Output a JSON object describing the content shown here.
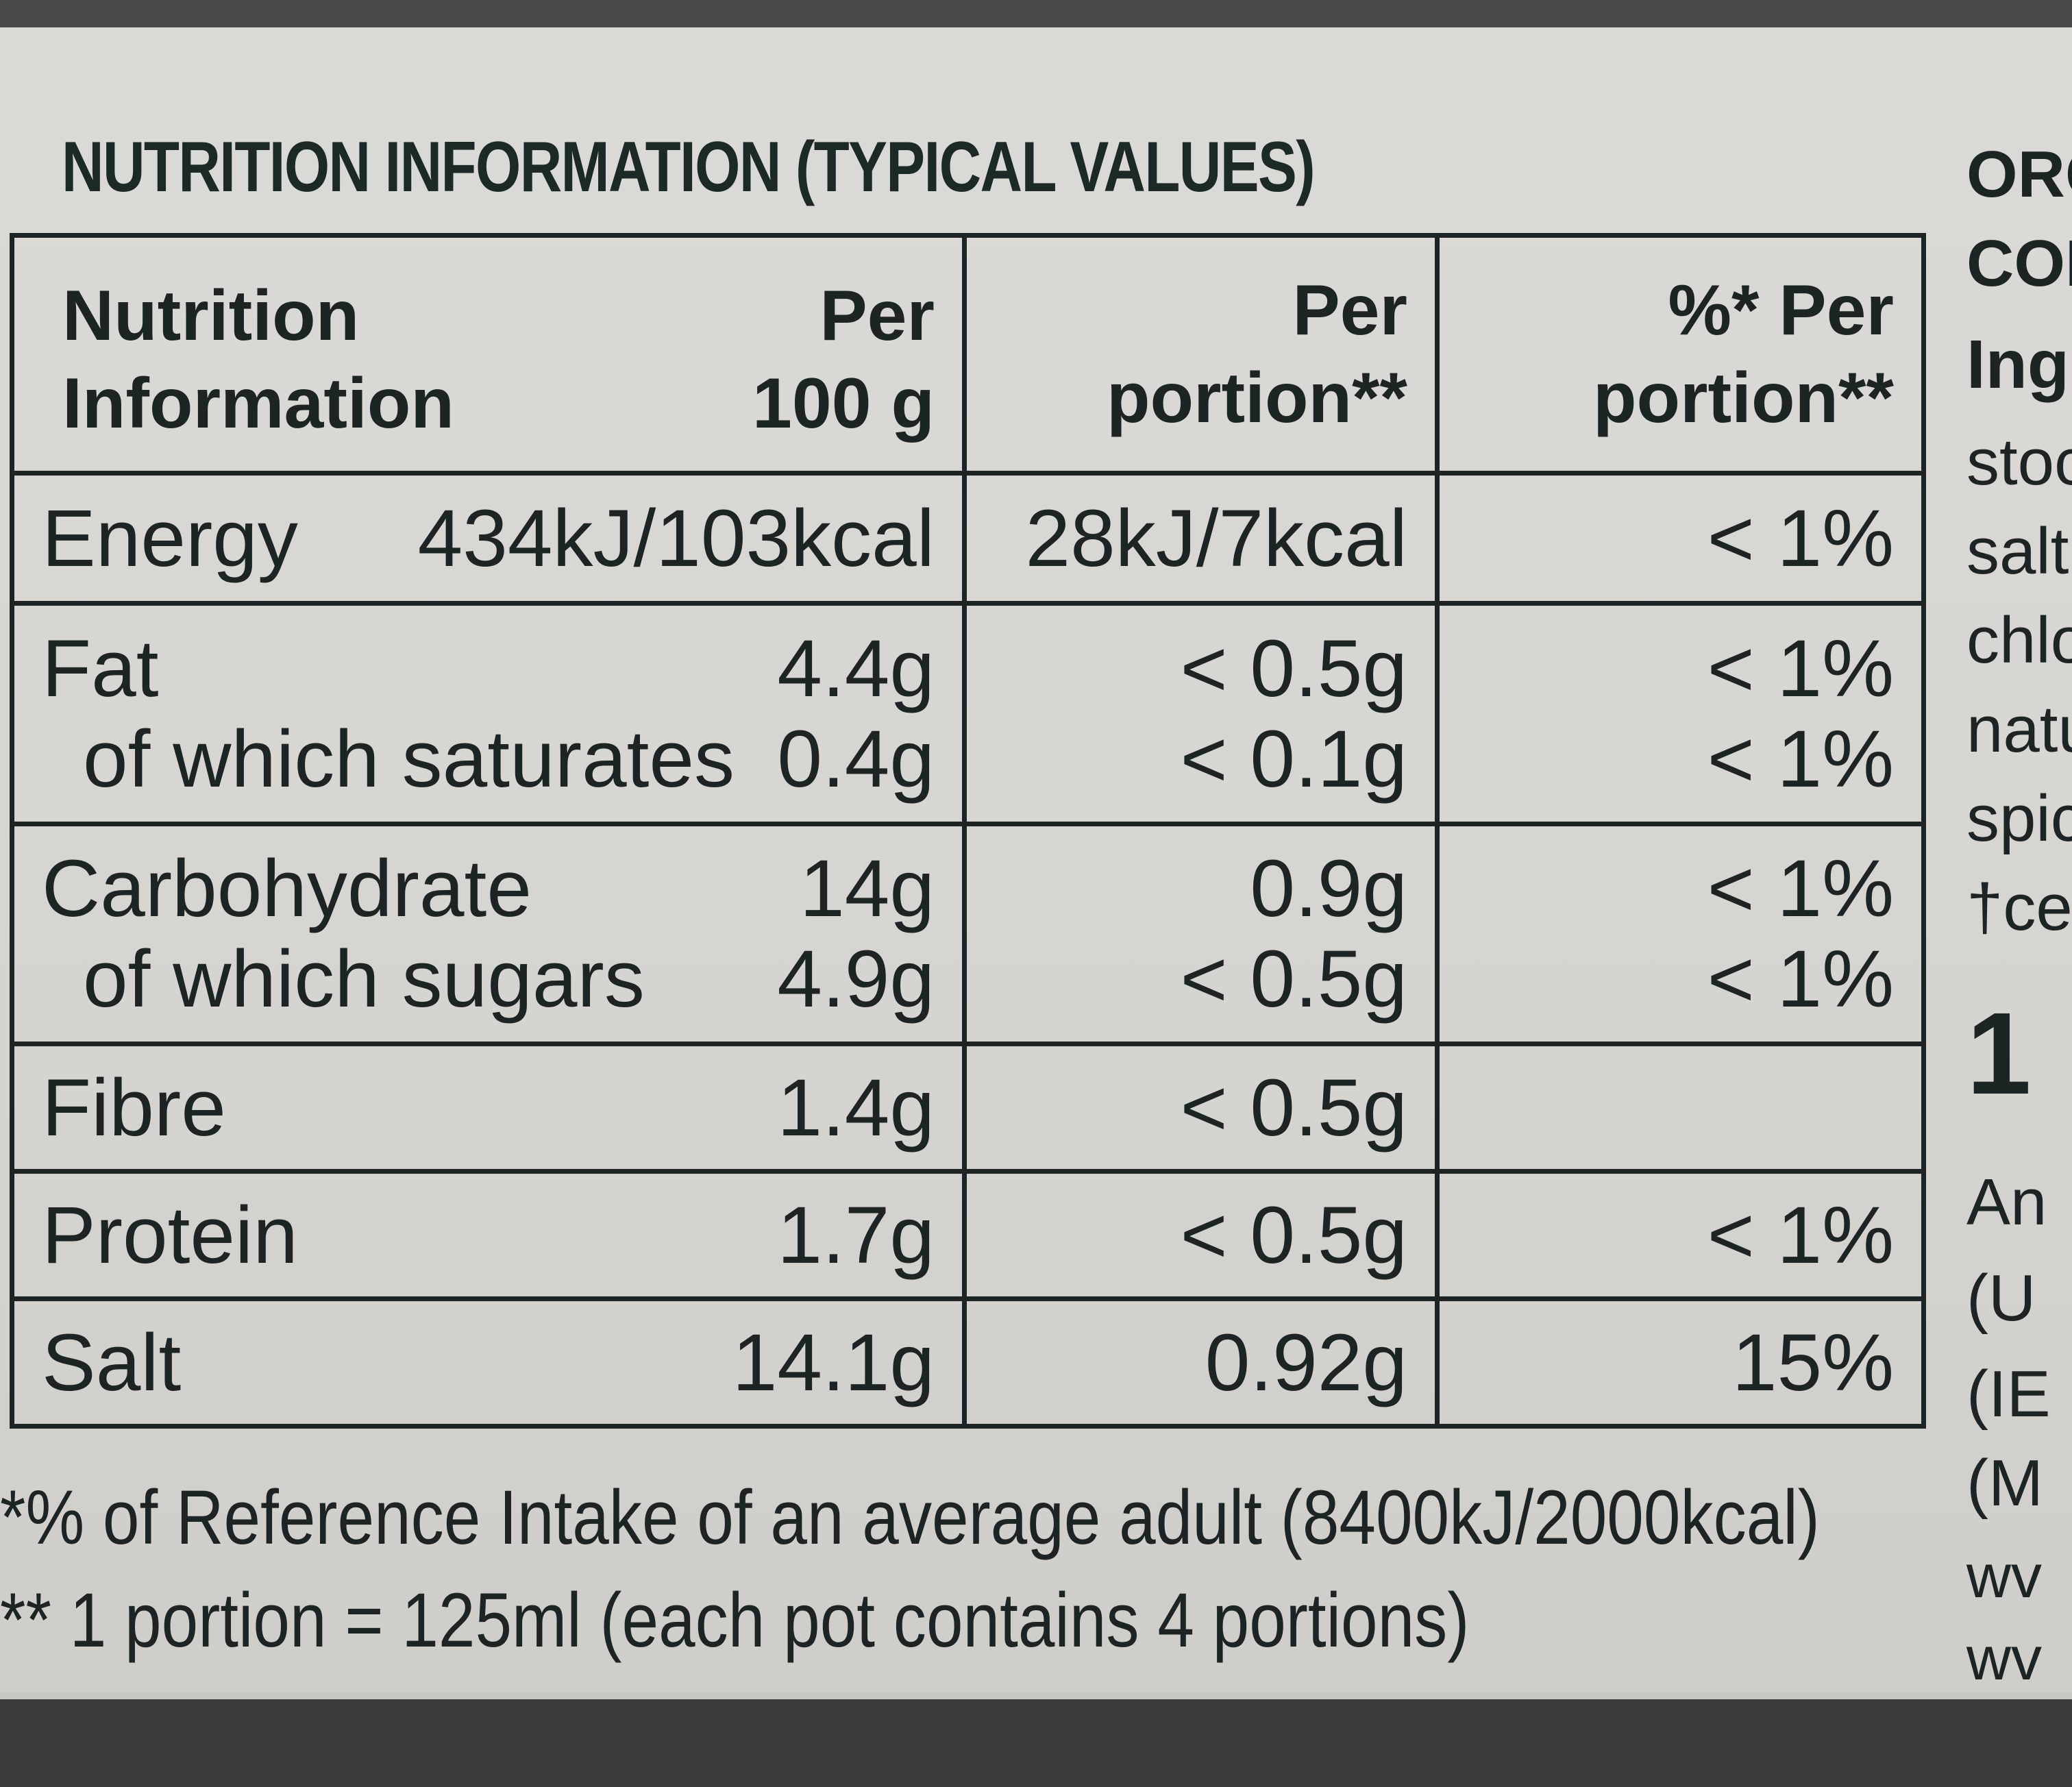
{
  "title": "NUTRITION INFORMATION (TYPICAL VALUES)",
  "headers": {
    "col1": [
      "Nutrition",
      "Information"
    ],
    "col2": [
      "Per",
      "100 g"
    ],
    "col3": [
      "Per",
      "portion**"
    ],
    "col4": [
      "%* Per",
      "portion**"
    ]
  },
  "rows": {
    "energy": {
      "label": "Energy",
      "per100": "434kJ/103kcal",
      "portion": "28kJ/7kcal",
      "ri": "< 1%"
    },
    "fat": {
      "label": "Fat",
      "per100": "4.4g",
      "portion": "< 0.5g",
      "ri": "< 1%"
    },
    "saturates": {
      "label": "of which saturates",
      "per100": "0.4g",
      "portion": "< 0.1g",
      "ri": "< 1%"
    },
    "carbohydrate": {
      "label": "Carbohydrate",
      "per100": "14g",
      "portion": "0.9g",
      "ri": "< 1%"
    },
    "sugars": {
      "label": "of which sugars",
      "per100": "4.9g",
      "portion": "< 0.5g",
      "ri": "< 1%"
    },
    "fibre": {
      "label": "Fibre",
      "per100": "1.4g",
      "portion": "< 0.5g",
      "ri": ""
    },
    "protein": {
      "label": "Protein",
      "per100": "1.7g",
      "portion": "< 0.5g",
      "ri": "< 1%"
    },
    "salt": {
      "label": "Salt",
      "per100": "14.1g",
      "portion": "0.92g",
      "ri": "15%"
    }
  },
  "footnotes": {
    "ri": "*% of Reference Intake of an average adult (8400kJ/2000kcal)",
    "portion": "** 1 portion = 125ml (each pot contains 4 portions)"
  },
  "side_text": {
    "l1": "ORG",
    "l2": "CON",
    "l3": "Ing",
    "l4": "stoc",
    "l5": "salt,",
    "l6": "chlo",
    "l7": "natu",
    "l8": "spic",
    "l9": "†cer",
    "l10": "1",
    "l11": "An",
    "l12": "(U",
    "l13": "(IE",
    "l14": "(M",
    "l15": "wv",
    "l16": "wv"
  }
}
